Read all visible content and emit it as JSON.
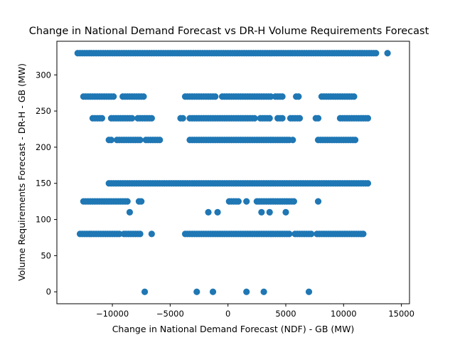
{
  "chart_data": {
    "type": "scatter",
    "title": "Change in National Demand Forecast vs DR-H Volume Requirements Forecast",
    "xlabel": "Change in National Demand Forecast (NDF) - GB (MW)",
    "ylabel": "Volume Requirements Forecast - DR-H - GB (MW)",
    "xlim": [
      -14800,
      15700
    ],
    "ylim": [
      -16.5,
      346.5
    ],
    "xticks": [
      -10000,
      -5000,
      0,
      5000,
      10000,
      15000
    ],
    "xtick_labels": [
      "−10000",
      "−5000",
      "0",
      "5000",
      "10000",
      "15000"
    ],
    "yticks": [
      0,
      50,
      100,
      150,
      200,
      250,
      300
    ],
    "ytick_labels": [
      "0",
      "50",
      "100",
      "150",
      "200",
      "250",
      "300"
    ],
    "grid": false,
    "marker_color": "#1f77b4",
    "bands": [
      {
        "y": 330,
        "ranges": [
          [
            -13000,
            12800
          ]
        ],
        "step": 200
      },
      {
        "y": 270,
        "ranges": [
          [
            -12500,
            -9900
          ],
          [
            -9100,
            -7200
          ],
          [
            -3700,
            -1000
          ],
          [
            -500,
            3800
          ],
          [
            4100,
            4800
          ],
          [
            5900,
            6200
          ],
          [
            8100,
            11000
          ]
        ],
        "step": 200
      },
      {
        "y": 240,
        "ranges": [
          [
            -11700,
            -10900
          ],
          [
            -10100,
            -8200
          ],
          [
            -7800,
            -6600
          ],
          [
            -4100,
            -3900
          ],
          [
            -3300,
            2400
          ],
          [
            2800,
            3600
          ],
          [
            4300,
            4800
          ],
          [
            5400,
            6200
          ],
          [
            7600,
            7800
          ],
          [
            9700,
            12200
          ]
        ],
        "step": 200
      },
      {
        "y": 210,
        "ranges": [
          [
            -10300,
            -10000
          ],
          [
            -9600,
            -7600
          ],
          [
            -7100,
            -5900
          ],
          [
            -3300,
            5300
          ],
          [
            5600,
            5700
          ],
          [
            7800,
            11000
          ]
        ],
        "step": 200
      },
      {
        "y": 150,
        "ranges": [
          [
            -10300,
            12100
          ]
        ],
        "step": 200
      },
      {
        "y": 125,
        "ranges": [
          [
            -12500,
            -8600
          ],
          [
            -7700,
            -7400
          ],
          [
            100,
            1000
          ],
          [
            1600,
            1700
          ],
          [
            2500,
            5800
          ],
          [
            7800,
            7800
          ]
        ],
        "step": 200
      },
      {
        "y": 80,
        "ranges": [
          [
            -12800,
            -9300
          ],
          [
            -9000,
            -7600
          ],
          [
            -6600,
            -6500
          ],
          [
            -3700,
            5400
          ],
          [
            5800,
            7200
          ],
          [
            7700,
            11700
          ]
        ],
        "step": 200
      }
    ],
    "points": [
      {
        "x": 13800,
        "y": 330
      },
      {
        "x": -8500,
        "y": 110
      },
      {
        "x": -1700,
        "y": 110
      },
      {
        "x": -900,
        "y": 110
      },
      {
        "x": 2900,
        "y": 110
      },
      {
        "x": 3600,
        "y": 110
      },
      {
        "x": 5000,
        "y": 110
      },
      {
        "x": -7200,
        "y": 0
      },
      {
        "x": -2700,
        "y": 0
      },
      {
        "x": -1300,
        "y": 0
      },
      {
        "x": 1600,
        "y": 0
      },
      {
        "x": 3100,
        "y": 0
      },
      {
        "x": 7000,
        "y": 0
      }
    ]
  }
}
